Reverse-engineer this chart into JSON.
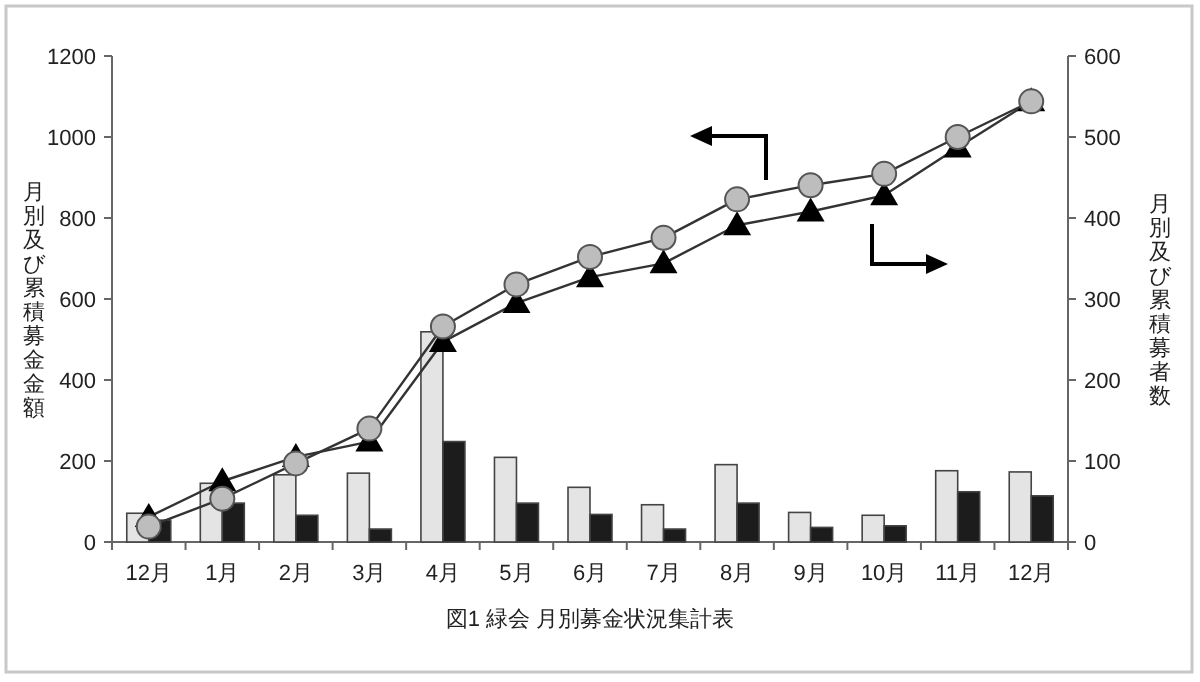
{
  "chart_data": {
    "type": "bar",
    "ylabel": "月別及び累積募金金額",
    "y2label": "月別及び累積募者数",
    "annotations": [
      "図1 緑会 月別募金状況集計表"
    ],
    "categories": [
      "12月",
      "1月",
      "2月",
      "3月",
      "4月",
      "5月",
      "6月",
      "7月",
      "8月",
      "9月",
      "10月",
      "11月",
      "12月"
    ],
    "ylim": [
      0,
      1200
    ],
    "yticks": [
      0,
      200,
      400,
      600,
      800,
      1000,
      1200
    ],
    "y2lim": [
      0,
      600
    ],
    "y2ticks": [
      0,
      100,
      200,
      300,
      400,
      500,
      600
    ],
    "series": [
      {
        "color": "#e4e4e4",
        "values": [
          71,
          145,
          166,
          170,
          519,
          209,
          135,
          92,
          191,
          73,
          66,
          176,
          173
        ]
      },
      {
        "axis": "y2",
        "color": "#1c1c1c",
        "values": [
          27,
          48,
          33,
          16,
          124,
          48,
          34,
          16,
          48,
          18,
          20,
          62,
          57
        ]
      },
      {
        "type": "line",
        "color": "#bdbdbd",
        "marker": "circle",
        "values": [
          38,
          107,
          194,
          280,
          532,
          636,
          704,
          751,
          846,
          881,
          909,
          1000,
          1088
        ]
      },
      {
        "type": "line",
        "axis": "y2",
        "color": "#000000",
        "marker": "triangle",
        "values": [
          31,
          75,
          105,
          124,
          247,
          295,
          327,
          344,
          391,
          408,
          428,
          487,
          544
        ]
      }
    ],
    "grid": false
  }
}
